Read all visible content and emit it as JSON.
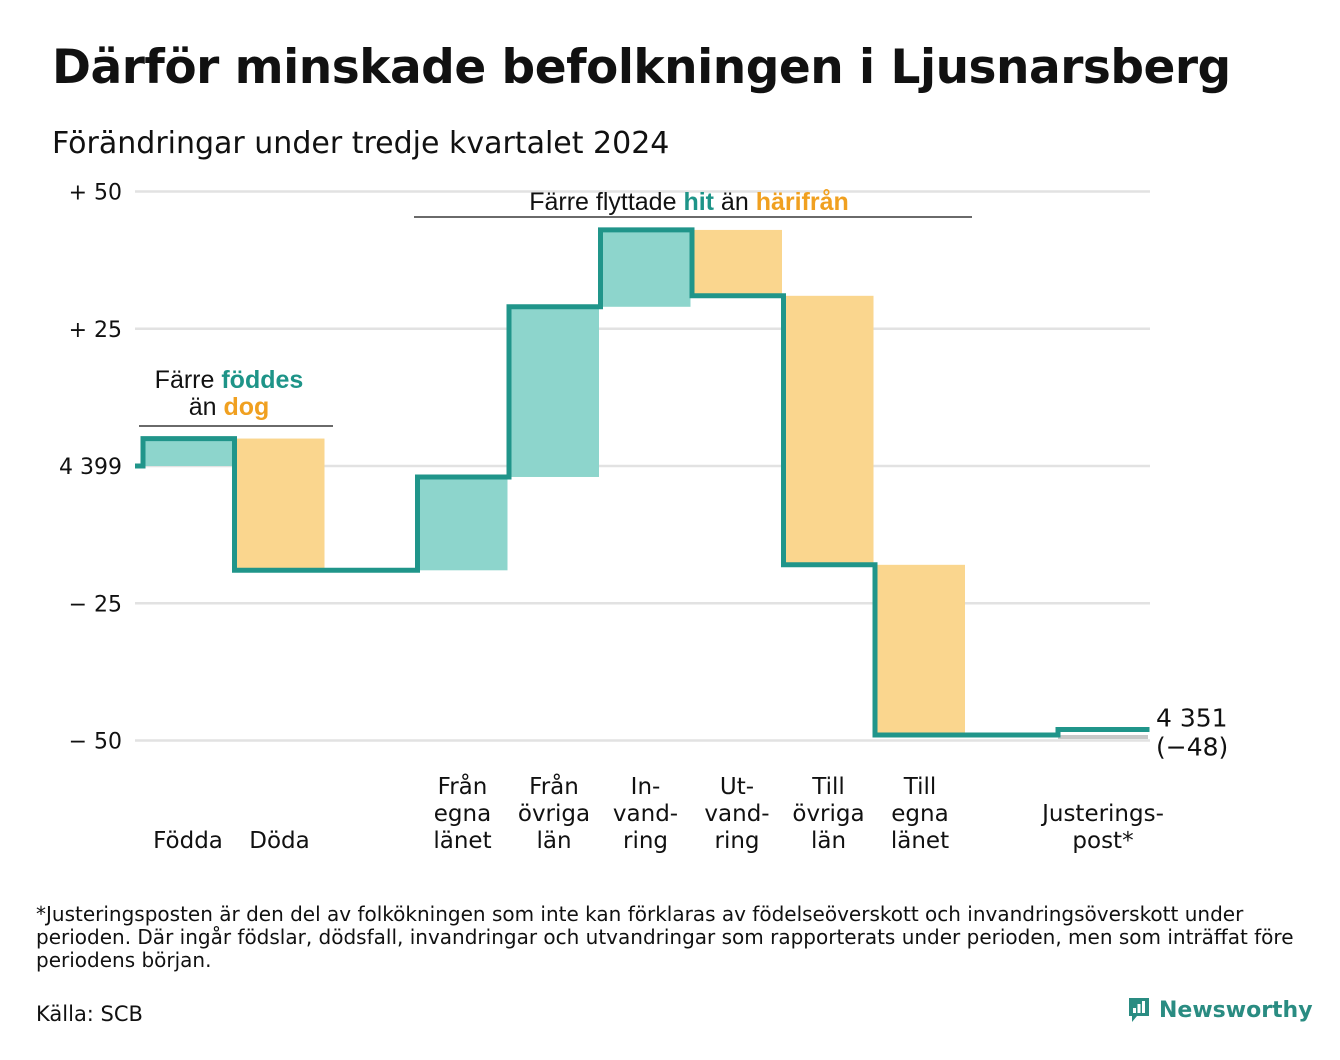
{
  "title": "Därför minskade befolkningen i Ljusnarsberg",
  "subtitle": "Förändringar under tredje kvartalet 2024",
  "colors": {
    "increase": "#8dd5cc",
    "decrease": "#fad68e",
    "line": "#20958a",
    "hit_text": "#1e9488",
    "harifran_text": "#f0a020",
    "grid": "#e2e2e2",
    "adjust": "#c8c8c8"
  },
  "chart_data": {
    "type": "waterfall",
    "start_value": 4399,
    "end_value": 4351,
    "end_change": "(−48)",
    "ylim": [
      -50,
      50
    ],
    "yticks": [
      {
        "value": 50,
        "label": "+ 50"
      },
      {
        "value": 25,
        "label": "+ 25"
      },
      {
        "value": 0,
        "label": "4 399"
      },
      {
        "value": -25,
        "label": "− 25"
      },
      {
        "value": -50,
        "label": "− 50"
      }
    ],
    "steps": [
      {
        "label": [
          "Födda"
        ],
        "delta": 5,
        "kind": "increase"
      },
      {
        "label": [
          "Döda"
        ],
        "delta": -24,
        "kind": "decrease"
      },
      {
        "label": [
          ""
        ],
        "delta": 0,
        "kind": "gap"
      },
      {
        "label": [
          "Från",
          "egna",
          "länet"
        ],
        "delta": 17,
        "kind": "increase"
      },
      {
        "label": [
          "Från",
          "övriga",
          "län"
        ],
        "delta": 31,
        "kind": "increase"
      },
      {
        "label": [
          "In-",
          "vand-",
          "ring"
        ],
        "delta": 14,
        "kind": "increase"
      },
      {
        "label": [
          "Ut-",
          "vand-",
          "ring"
        ],
        "delta": -12,
        "kind": "decrease"
      },
      {
        "label": [
          "Till",
          "övriga",
          "län"
        ],
        "delta": -49,
        "kind": "decrease"
      },
      {
        "label": [
          "Till",
          "egna",
          "länet"
        ],
        "delta": -31,
        "kind": "decrease"
      },
      {
        "label": [
          ""
        ],
        "delta": 0,
        "kind": "gap"
      },
      {
        "label": [
          "Justerings-",
          "post*"
        ],
        "delta": 1,
        "kind": "adjust"
      }
    ],
    "annotations": [
      {
        "lines": [
          [
            "Färre ",
            "föddes"
          ],
          [
            "än ",
            "dog"
          ]
        ]
      },
      {
        "lines": [
          [
            "Färre flyttade ",
            "hit",
            " än ",
            "härifrån"
          ]
        ]
      }
    ]
  },
  "footnote": "*Justeringsposten är den del av folkökningen som inte kan förklaras av födelseöverskott och invandringsöverskott under perioden. Där ingår födslar, dödsfall, invandringar och utvandringar som rapporterats under perioden, men som inträffat före periodens början.",
  "source": "Källa: SCB",
  "brand": {
    "name": "Newsworthy",
    "icon": "chart-bubble-icon"
  }
}
